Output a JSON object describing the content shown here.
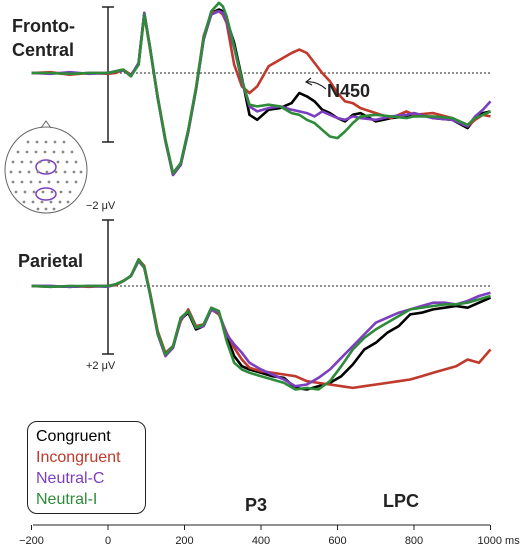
{
  "chart_data": {
    "type": "line",
    "xlabel_unit": "ms",
    "x_ticks": [
      -200,
      0,
      200,
      400,
      600,
      800,
      1000
    ],
    "x_tick_labels": [
      "−200",
      "0",
      "200",
      "400",
      "600",
      "800",
      "1000 ms"
    ],
    "xlim": [
      -200,
      1000
    ],
    "scale_top": "−2 μV",
    "scale_bottom": "+2 μV",
    "panels": [
      {
        "title": "Fronto-\nCentral",
        "title_line1": "Fronto-",
        "title_line2": "Central",
        "annotations": [
          {
            "text": "N450",
            "x": 500,
            "value": -1.4
          }
        ],
        "series": [
          {
            "name": "Congruent",
            "color": "#000000",
            "x": [
              -200,
              -150,
              -100,
              -50,
              0,
              20,
              40,
              60,
              80,
              95,
              110,
              130,
              150,
              170,
              190,
              210,
              230,
              250,
              270,
              290,
              300,
              310,
              330,
              350,
              370,
              390,
              420,
              450,
              480,
              500,
              520,
              540,
              560,
              580,
              600,
              620,
              640,
              660,
              700,
              740,
              780,
              800,
              850,
              900,
              940,
              960,
              980,
              1000
            ],
            "y": [
              0,
              0,
              0.05,
              0,
              0,
              -0.1,
              -0.2,
              0.2,
              -0.6,
              -3.6,
              -1.5,
              1.5,
              4.0,
              6.1,
              5.5,
              3.5,
              1.0,
              -2.0,
              -3.6,
              -3.8,
              -3.7,
              -3.2,
              -1.8,
              0.3,
              2.5,
              2.8,
              2.2,
              2.1,
              1.8,
              1.2,
              1.4,
              1.7,
              2.2,
              2.4,
              2.7,
              2.9,
              2.5,
              2.4,
              2.9,
              2.7,
              2.6,
              2.4,
              2.7,
              2.8,
              3.3,
              2.7,
              2.4,
              2.3
            ]
          },
          {
            "name": "Incongruent",
            "color": "#c0392b",
            "x": [
              -200,
              -150,
              -100,
              -50,
              0,
              20,
              40,
              60,
              80,
              95,
              110,
              130,
              150,
              170,
              190,
              210,
              230,
              250,
              270,
              290,
              300,
              310,
              330,
              350,
              370,
              390,
              420,
              450,
              480,
              500,
              520,
              540,
              560,
              580,
              600,
              620,
              640,
              660,
              700,
              740,
              780,
              800,
              850,
              900,
              940,
              960,
              980,
              1000
            ],
            "y": [
              0,
              -0.05,
              0.1,
              0,
              0.05,
              0,
              -0.2,
              0.1,
              -0.5,
              -3.5,
              -1.4,
              1.4,
              4.0,
              6.0,
              5.4,
              3.4,
              0.9,
              -2.2,
              -3.6,
              -3.7,
              -3.5,
              -3.0,
              -0.5,
              0.8,
              1.2,
              0.8,
              -0.4,
              -0.8,
              -1.2,
              -1.4,
              -1.2,
              -0.6,
              0,
              0.5,
              1.2,
              1.7,
              1.8,
              2.1,
              2.4,
              2.7,
              2.3,
              2.5,
              2.4,
              2.7,
              3.2,
              2.8,
              2.5,
              2.6
            ]
          },
          {
            "name": "Neutral-C",
            "color": "#7b3fbf",
            "x": [
              -200,
              -150,
              -100,
              -50,
              0,
              20,
              40,
              60,
              80,
              95,
              110,
              130,
              150,
              170,
              190,
              210,
              230,
              250,
              270,
              290,
              300,
              310,
              330,
              350,
              370,
              390,
              420,
              450,
              480,
              500,
              520,
              540,
              560,
              580,
              600,
              620,
              640,
              660,
              700,
              740,
              780,
              800,
              850,
              900,
              940,
              960,
              980,
              1000
            ],
            "y": [
              0,
              0.05,
              -0.05,
              0.05,
              0,
              -0.1,
              -0.15,
              0.15,
              -0.6,
              -3.6,
              -1.5,
              1.5,
              4.1,
              6.1,
              5.5,
              3.5,
              1.0,
              -2.0,
              -3.5,
              -3.7,
              -3.6,
              -3.1,
              -1.5,
              0.5,
              2.0,
              2.3,
              2.1,
              2.0,
              2.2,
              2.3,
              2.4,
              2.6,
              2.3,
              2.5,
              2.7,
              2.8,
              2.6,
              2.7,
              2.8,
              2.6,
              2.5,
              2.4,
              2.7,
              2.8,
              3.2,
              2.6,
              2.2,
              1.7
            ]
          },
          {
            "name": "Neutral-I",
            "color": "#2e8b3a",
            "x": [
              -200,
              -150,
              -100,
              -50,
              0,
              20,
              40,
              60,
              80,
              95,
              110,
              130,
              150,
              170,
              190,
              210,
              230,
              250,
              270,
              290,
              300,
              310,
              330,
              350,
              370,
              390,
              420,
              450,
              480,
              500,
              520,
              540,
              560,
              580,
              600,
              620,
              640,
              660,
              700,
              740,
              780,
              800,
              850,
              900,
              940,
              960,
              980,
              1000
            ],
            "y": [
              0,
              0,
              0.05,
              0,
              0,
              -0.1,
              -0.2,
              0.2,
              -0.5,
              -3.5,
              -1.5,
              1.5,
              4.0,
              6.0,
              5.4,
              3.4,
              0.9,
              -2.1,
              -3.7,
              -4.2,
              -4.0,
              -3.4,
              -1.6,
              0.4,
              1.9,
              2.0,
              1.9,
              2.0,
              2.4,
              2.5,
              2.8,
              3.0,
              3.4,
              3.8,
              3.9,
              3.5,
              3.0,
              2.6,
              2.5,
              2.6,
              2.7,
              2.6,
              2.6,
              2.7,
              3.1,
              2.7,
              2.5,
              2.3
            ]
          }
        ]
      },
      {
        "title": "Parietal",
        "annotations": [
          {
            "text": "P3",
            "x": 470,
            "value": 6.4
          },
          {
            "text": "LPC",
            "x": 690,
            "value": 6.2
          }
        ],
        "series": [
          {
            "name": "Congruent",
            "color": "#000000",
            "x": [
              -200,
              -150,
              -100,
              -50,
              0,
              20,
              40,
              60,
              80,
              95,
              110,
              130,
              150,
              170,
              190,
              210,
              230,
              250,
              270,
              290,
              310,
              330,
              350,
              370,
              400,
              430,
              460,
              490,
              520,
              550,
              580,
              610,
              640,
              670,
              700,
              730,
              760,
              790,
              820,
              850,
              880,
              910,
              940,
              970,
              1000
            ],
            "y": [
              0,
              0,
              0.05,
              0,
              0,
              -0.1,
              -0.3,
              -0.6,
              -1.5,
              -1.1,
              0.5,
              2.8,
              4.1,
              3.7,
              2.0,
              1.6,
              2.6,
              2.4,
              1.4,
              1.6,
              3.0,
              4.2,
              4.8,
              5.0,
              5.2,
              5.4,
              5.5,
              6.1,
              6.2,
              6.0,
              5.8,
              5.4,
              4.7,
              3.8,
              3.4,
              2.8,
              2.4,
              1.7,
              1.6,
              1.4,
              1.3,
              1.2,
              1.3,
              1.0,
              0.7
            ]
          },
          {
            "name": "Incongruent",
            "color": "#c0392b",
            "x": [
              -200,
              -150,
              -100,
              -50,
              0,
              20,
              40,
              60,
              80,
              95,
              110,
              130,
              150,
              170,
              190,
              210,
              230,
              250,
              270,
              290,
              310,
              330,
              350,
              370,
              400,
              430,
              460,
              490,
              520,
              550,
              580,
              610,
              640,
              670,
              700,
              730,
              760,
              790,
              820,
              850,
              880,
              910,
              940,
              970,
              1000
            ],
            "y": [
              0,
              0.05,
              0,
              0.05,
              0,
              -0.05,
              -0.3,
              -0.6,
              -1.6,
              -1.2,
              0.4,
              2.7,
              4.0,
              3.6,
              2.1,
              1.4,
              2.4,
              2.3,
              1.4,
              1.7,
              2.8,
              3.7,
              4.4,
              4.9,
              5.1,
              5.2,
              5.3,
              5.4,
              5.7,
              5.8,
              5.9,
              6.0,
              6.1,
              6.0,
              5.9,
              5.8,
              5.7,
              5.6,
              5.4,
              5.2,
              5.0,
              4.8,
              4.4,
              4.6,
              3.8
            ]
          },
          {
            "name": "Neutral-C",
            "color": "#7b3fbf",
            "x": [
              -200,
              -150,
              -100,
              -50,
              0,
              20,
              40,
              60,
              80,
              95,
              110,
              130,
              150,
              170,
              190,
              210,
              230,
              250,
              270,
              290,
              310,
              330,
              350,
              370,
              400,
              430,
              460,
              490,
              520,
              550,
              580,
              610,
              640,
              670,
              700,
              730,
              760,
              790,
              820,
              850,
              880,
              910,
              940,
              970,
              1000
            ],
            "y": [
              0,
              0,
              0.05,
              0,
              0.05,
              -0.1,
              -0.3,
              -0.6,
              -1.5,
              -1.1,
              0.5,
              2.9,
              4.2,
              3.7,
              2.0,
              1.5,
              2.5,
              2.4,
              1.4,
              1.6,
              2.9,
              3.5,
              4.0,
              4.6,
              5.0,
              5.3,
              5.6,
              6.0,
              5.9,
              5.5,
              5.0,
              4.3,
              3.6,
              2.9,
              2.2,
              1.9,
              1.6,
              1.4,
              1.2,
              1.0,
              1.0,
              1.1,
              0.9,
              0.6,
              0.4
            ]
          },
          {
            "name": "Neutral-I",
            "color": "#2e8b3a",
            "x": [
              -200,
              -150,
              -100,
              -50,
              0,
              20,
              40,
              60,
              80,
              95,
              110,
              130,
              150,
              170,
              190,
              210,
              230,
              250,
              270,
              290,
              310,
              330,
              350,
              370,
              400,
              430,
              460,
              490,
              520,
              550,
              580,
              610,
              640,
              670,
              700,
              730,
              760,
              790,
              820,
              850,
              880,
              910,
              940,
              970,
              1000
            ],
            "y": [
              0,
              0.05,
              0,
              0,
              0,
              -0.1,
              -0.3,
              -0.6,
              -1.6,
              -1.1,
              0.5,
              2.8,
              4.1,
              3.6,
              1.9,
              1.5,
              2.5,
              2.3,
              1.3,
              1.5,
              3.3,
              4.6,
              5.0,
              5.2,
              5.4,
              5.6,
              5.8,
              6.2,
              6.1,
              6.2,
              5.7,
              4.8,
              3.8,
              3.1,
              2.6,
              2.2,
              1.8,
              1.4,
              1.3,
              1.2,
              1.1,
              1.1,
              1.0,
              0.8,
              0.6
            ]
          }
        ]
      }
    ],
    "legend": {
      "position": "bottom-left",
      "entries": [
        "Congruent",
        "Incongruent",
        "Neutral-C",
        "Neutral-I"
      ]
    }
  }
}
